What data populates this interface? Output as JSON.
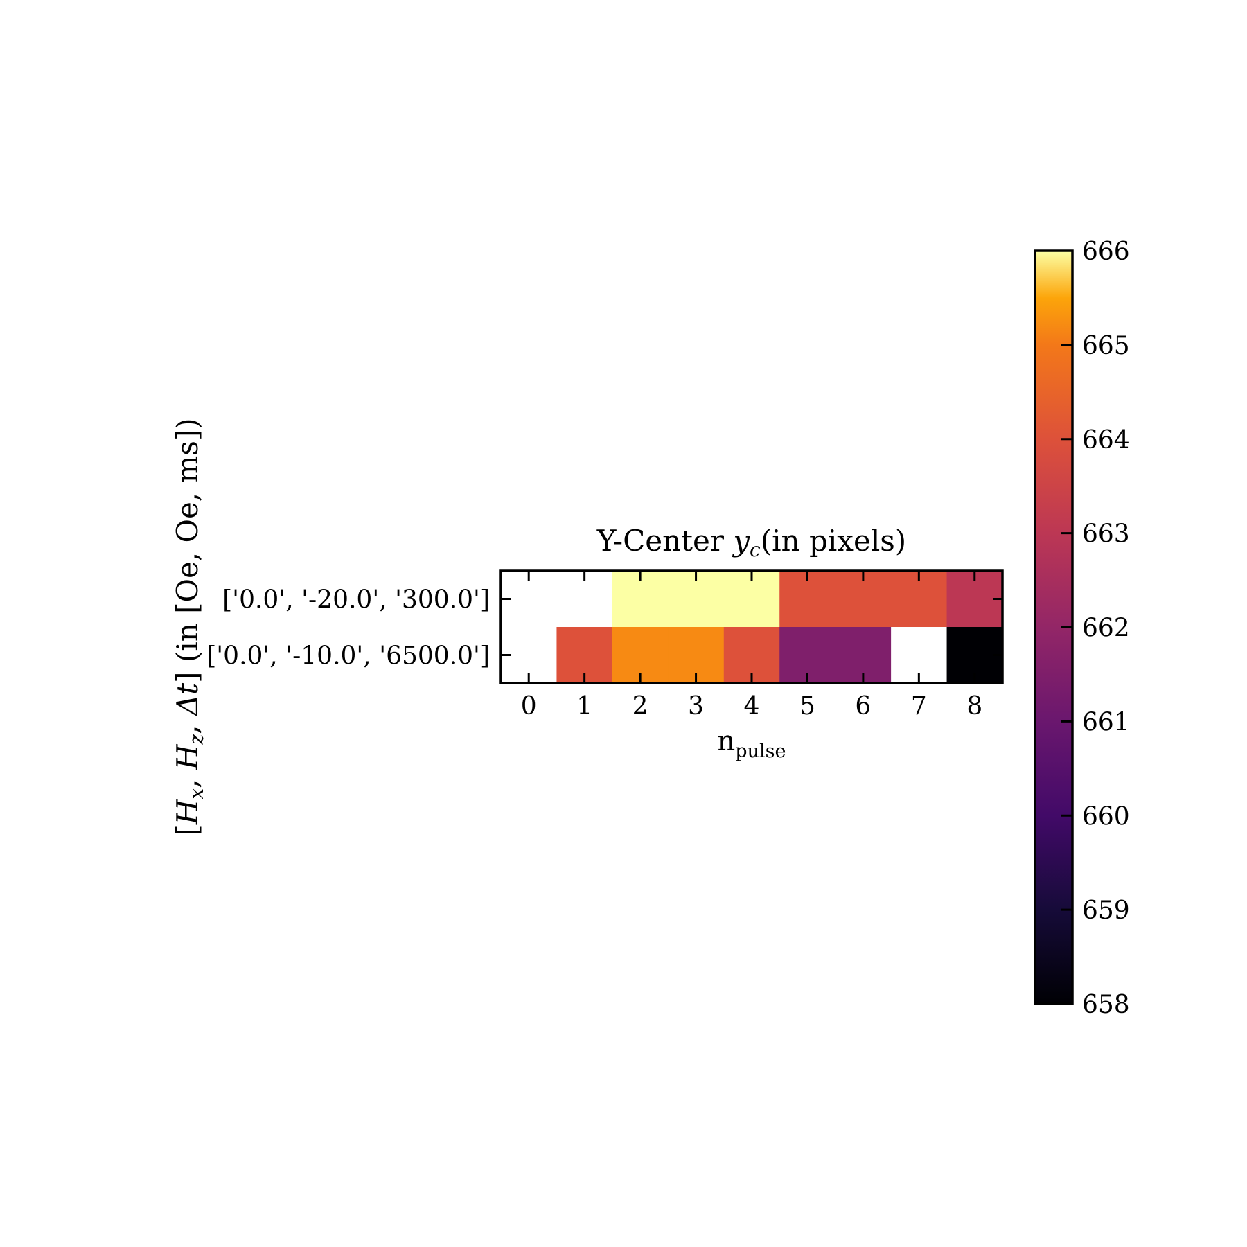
{
  "chart_data": {
    "type": "heatmap",
    "title": "Y-Center y_c(in pixels)",
    "title_parts": {
      "prefix": "Y-Center ",
      "var": "y",
      "sub": "c",
      "suffix": "(in pixels)"
    },
    "xlabel": "n_pulse",
    "xlabel_parts": {
      "main": "n",
      "sub": "pulse"
    },
    "ylabel": "[H_x, H_z, Δt] (in [Oe, Oe, ms])",
    "ylabel_parts": {
      "open": "[",
      "h1": "H",
      "h1_sub": "x",
      "sep": ", ",
      "h2": "H",
      "h2_sub": "z",
      "dt": "Δt",
      "close": "]",
      "suffix": " (in [Oe, Oe, ms])"
    },
    "x_categories": [
      "0",
      "1",
      "2",
      "3",
      "4",
      "5",
      "6",
      "7",
      "8"
    ],
    "y_categories": [
      "['0.0', '-20.0', '300.0']",
      "['0.0', '-10.0', '6500.0']"
    ],
    "values": [
      [
        null,
        null,
        666.0,
        666.0,
        666.0,
        664.0,
        664.0,
        664.0,
        663.0
      ],
      [
        null,
        664.0,
        665.2,
        665.2,
        664.0,
        661.5,
        661.5,
        null,
        658.0
      ]
    ],
    "colormap": "inferno",
    "colorbar": {
      "min": 658,
      "max": 666,
      "ticks": [
        "658",
        "659",
        "660",
        "661",
        "662",
        "663",
        "664",
        "665",
        "666"
      ]
    },
    "missing_color": "#ffffff"
  }
}
